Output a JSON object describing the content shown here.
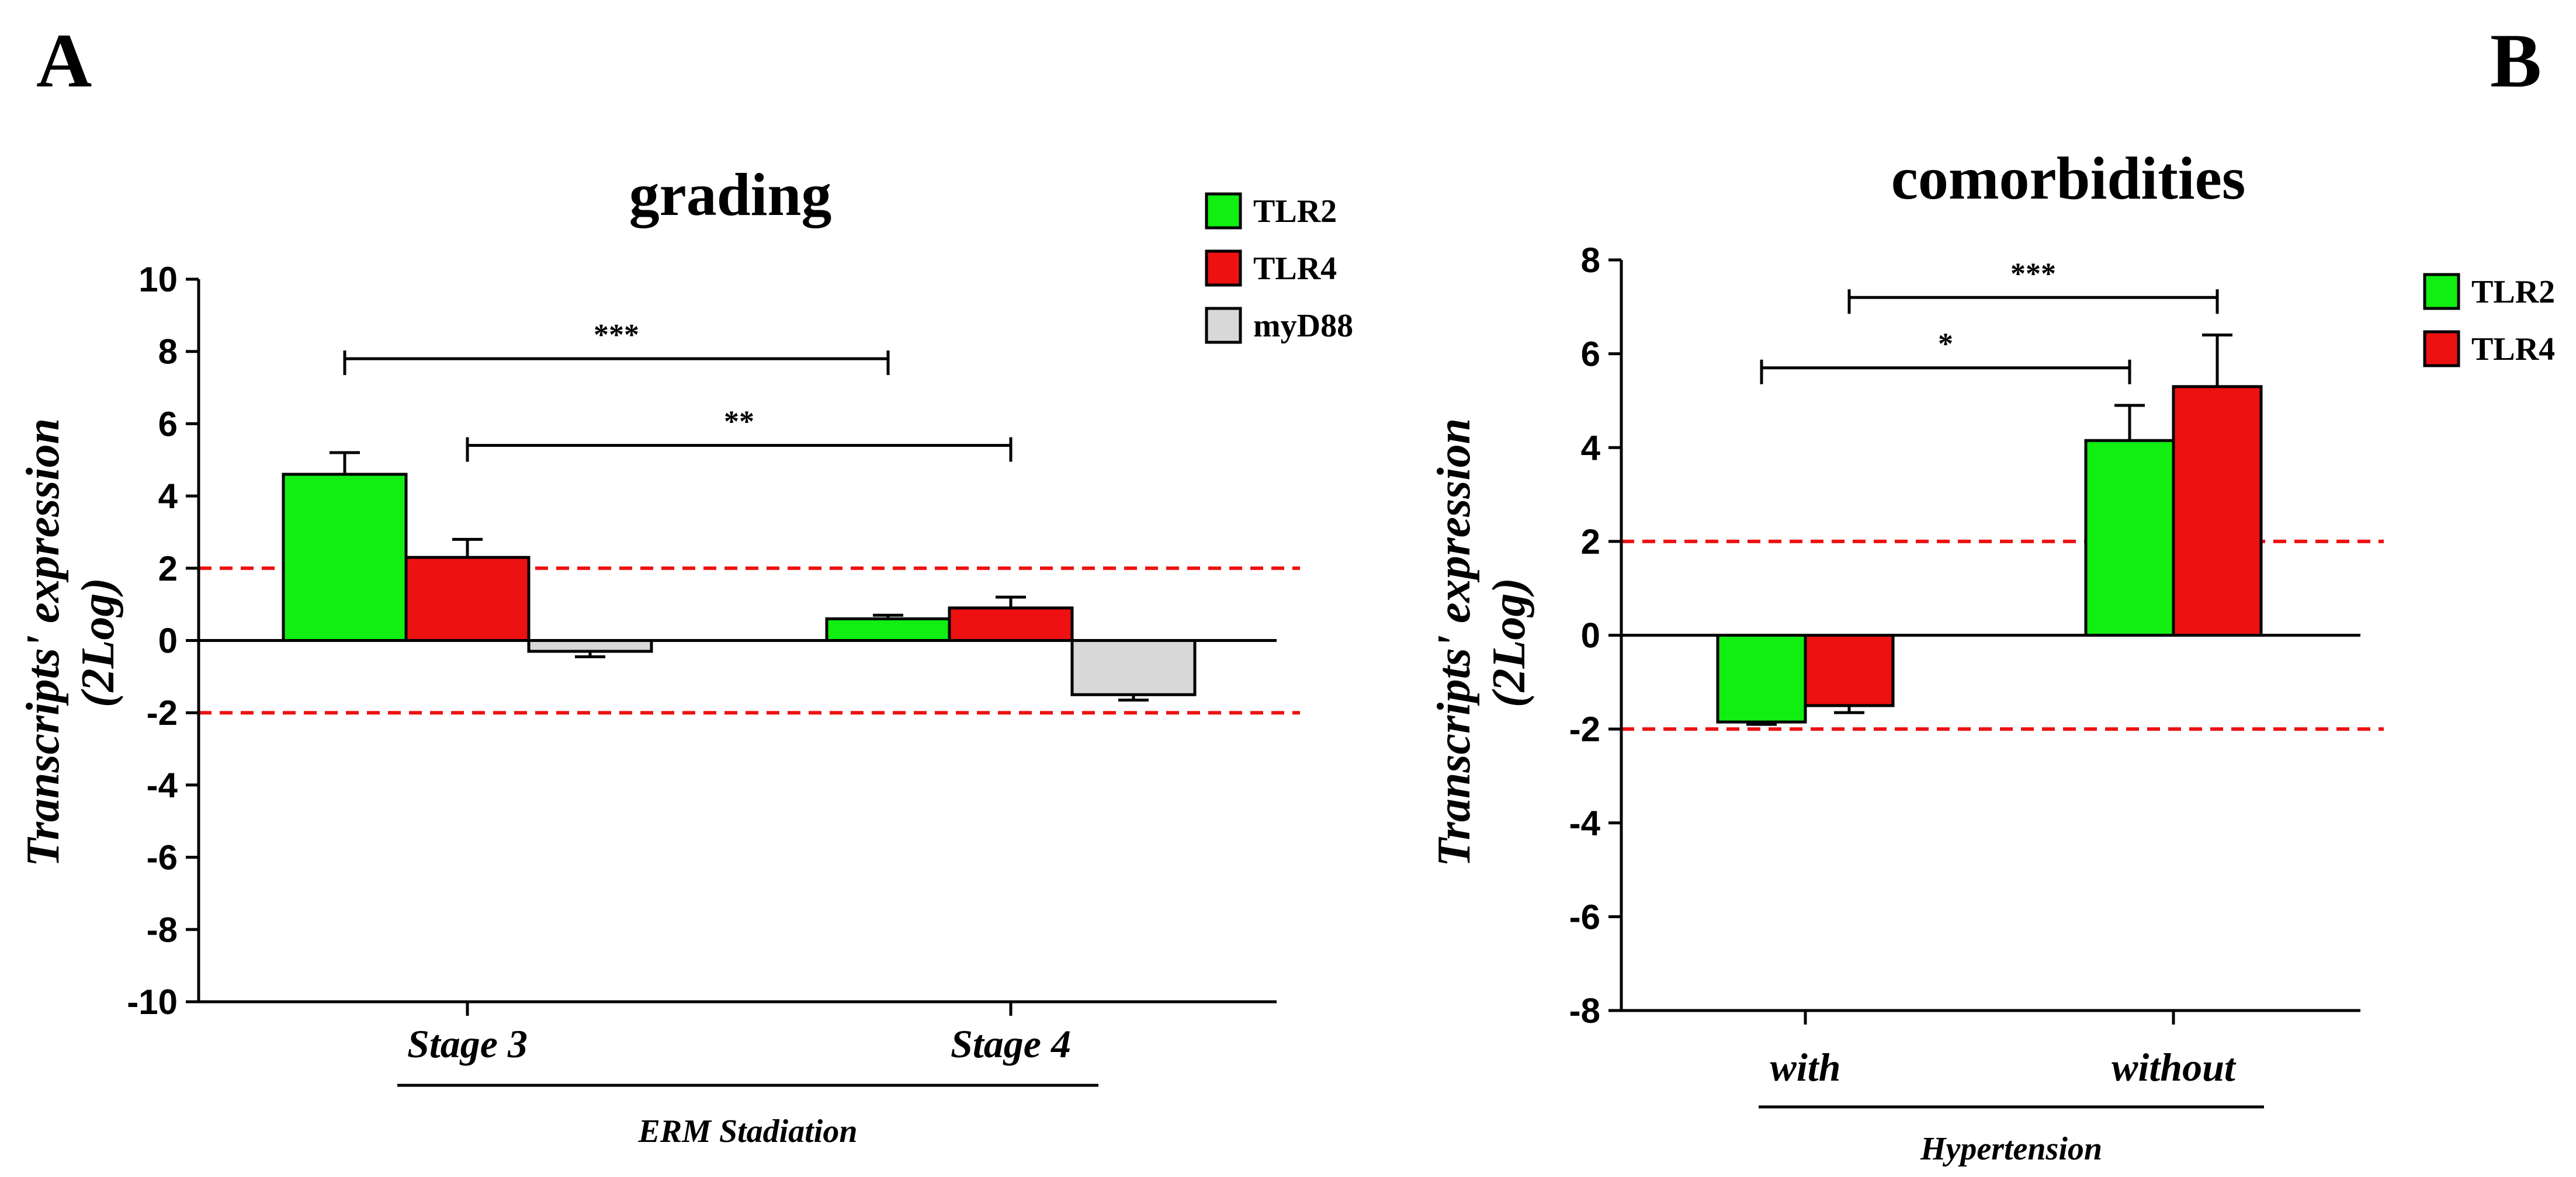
{
  "figure": {
    "panel_a_letter": "A",
    "panel_b_letter": "B"
  },
  "colors": {
    "TLR2": "#11ee11",
    "TLR4": "#ee1111",
    "myD88": "#d8d8d8",
    "threshold": "#ee1111",
    "axis": "#000000"
  },
  "chart_data": [
    {
      "type": "bar",
      "title": "grading",
      "ylabel": "Transcripts' expression (2Log)",
      "ylabel_lines": [
        "Transcripts' expression",
        "(2Log)"
      ],
      "xlabel": "ERM Stadiation",
      "categories": [
        "Stage 3",
        "Stage 4"
      ],
      "ylim": [
        -10,
        10
      ],
      "yticks": [
        -10,
        -8,
        -6,
        -4,
        -2,
        0,
        2,
        4,
        6,
        8,
        10
      ],
      "series": [
        {
          "name": "TLR2",
          "values": [
            4.6,
            0.6
          ],
          "errors": [
            0.6,
            0.1
          ]
        },
        {
          "name": "TLR4",
          "values": [
            2.3,
            0.9
          ],
          "errors": [
            0.5,
            0.3
          ]
        },
        {
          "name": "myD88",
          "values": [
            -0.3,
            -1.5
          ],
          "errors": [
            0.15,
            0.15
          ]
        }
      ],
      "thresholds": [
        2,
        -2
      ],
      "significance": [
        {
          "label": "***",
          "from": {
            "category": 0,
            "series": 0
          },
          "to": {
            "category": 1,
            "series": 0
          },
          "y": 7.8
        },
        {
          "label": "**",
          "from": {
            "category": 0,
            "series": 1
          },
          "to": {
            "category": 1,
            "series": 1
          },
          "y": 5.4
        }
      ],
      "legend": [
        "TLR2",
        "TLR4",
        "myD88"
      ]
    },
    {
      "type": "bar",
      "title": "comorbidities",
      "ylabel": "Transcripts' expression (2Log)",
      "ylabel_lines": [
        "Transcripts' expression",
        "(2Log)"
      ],
      "xlabel": "Hypertension",
      "categories": [
        "with",
        "without"
      ],
      "ylim": [
        -8,
        8
      ],
      "yticks": [
        -8,
        -6,
        -4,
        -2,
        0,
        2,
        4,
        6,
        8
      ],
      "series": [
        {
          "name": "TLR2",
          "values": [
            -1.85,
            4.15
          ],
          "errors": [
            0.05,
            0.75
          ]
        },
        {
          "name": "TLR4",
          "values": [
            -1.5,
            5.3
          ],
          "errors": [
            0.15,
            1.1
          ]
        }
      ],
      "thresholds": [
        2,
        -2
      ],
      "significance": [
        {
          "label": "*",
          "from": {
            "category": 0,
            "series": 0
          },
          "to": {
            "category": 1,
            "series": 0
          },
          "y": 5.7
        },
        {
          "label": "***",
          "from": {
            "category": 0,
            "series": 1
          },
          "to": {
            "category": 1,
            "series": 1
          },
          "y": 7.2
        }
      ],
      "legend": [
        "TLR2",
        "TLR4"
      ]
    }
  ]
}
